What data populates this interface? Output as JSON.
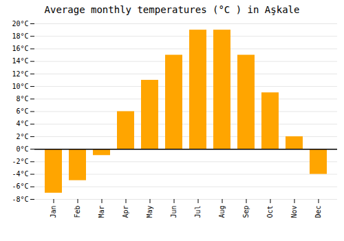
{
  "chart_data": {
    "type": "bar",
    "title": "Average monthly temperatures (°C ) in Aşkale",
    "categories": [
      "Jan",
      "Feb",
      "Mar",
      "Apr",
      "May",
      "Jun",
      "Jul",
      "Aug",
      "Sep",
      "Oct",
      "Nov",
      "Dec"
    ],
    "values": [
      -7,
      -5,
      -1,
      6,
      11,
      15,
      19,
      19,
      15,
      9,
      2,
      -4
    ],
    "color": "#FFA500",
    "ylim": [
      -8,
      20
    ],
    "yticks": [
      {
        "value": -8,
        "label": "-8°C"
      },
      {
        "value": -6,
        "label": "-6°C"
      },
      {
        "value": -4,
        "label": "-4°C"
      },
      {
        "value": -2,
        "label": "-2°C"
      },
      {
        "value": 0,
        "label": "0°C"
      },
      {
        "value": 2,
        "label": "2°C"
      },
      {
        "value": 4,
        "label": "4°C"
      },
      {
        "value": 6,
        "label": "6°C"
      },
      {
        "value": 8,
        "label": "8°C"
      },
      {
        "value": 10,
        "label": "10°C"
      },
      {
        "value": 12,
        "label": "12°C"
      },
      {
        "value": 14,
        "label": "14°C"
      },
      {
        "value": 16,
        "label": "16°C"
      },
      {
        "value": 18,
        "label": "18°C"
      },
      {
        "value": 20,
        "label": "20°C"
      }
    ],
    "grid": true
  }
}
